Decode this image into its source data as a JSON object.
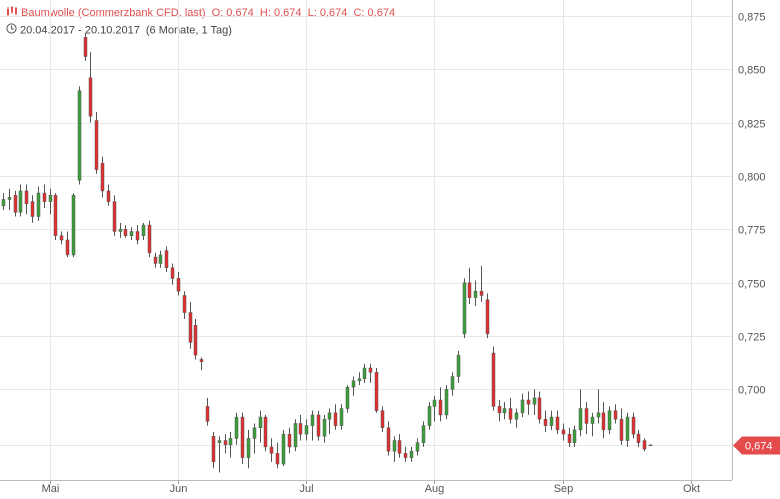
{
  "header": {
    "instrument": "Baumwolle (Commerzbank CFD, last)",
    "ohlc": "O: 0,674  H: 0,674  L: 0,674  C: 0,674",
    "range": "20.04.2017 - 20.10.2017",
    "period": "(6 Monate, 1 Tag)"
  },
  "colors": {
    "up": "#3a9e3a",
    "down": "#e03030",
    "grid": "#e8e8e8",
    "badge": "#e44c4c"
  },
  "chart_data": {
    "type": "candlestick",
    "title": "Baumwolle (Commerzbank CFD, last)",
    "ylim": [
      0.6575,
      0.8825
    ],
    "y_ticks": [
      "0,700",
      "0,725",
      "0,750",
      "0,775",
      "0,800",
      "0,825",
      "0,850",
      "0,875"
    ],
    "y_tick_values": [
      0.7,
      0.725,
      0.75,
      0.775,
      0.8,
      0.825,
      0.85,
      0.875
    ],
    "x_ticks": [
      "Mai",
      "Jun",
      "Jul",
      "Aug",
      "Sep",
      "Okt"
    ],
    "x_tick_index": [
      8,
      30,
      52,
      74,
      96,
      118
    ],
    "last_value": 0.674,
    "last_label": "0,674",
    "candles": [
      [
        0.786,
        0.792,
        0.784,
        0.789
      ],
      [
        0.789,
        0.794,
        0.784,
        0.79
      ],
      [
        0.791,
        0.793,
        0.781,
        0.783
      ],
      [
        0.783,
        0.796,
        0.781,
        0.793
      ],
      [
        0.793,
        0.796,
        0.782,
        0.787
      ],
      [
        0.788,
        0.791,
        0.778,
        0.781
      ],
      [
        0.781,
        0.795,
        0.779,
        0.792
      ],
      [
        0.792,
        0.796,
        0.785,
        0.788
      ],
      [
        0.788,
        0.794,
        0.782,
        0.791
      ],
      [
        0.791,
        0.792,
        0.77,
        0.772
      ],
      [
        0.772,
        0.774,
        0.768,
        0.77
      ],
      [
        0.77,
        0.774,
        0.762,
        0.763
      ],
      [
        0.763,
        0.792,
        0.762,
        0.791
      ],
      [
        0.798,
        0.842,
        0.796,
        0.84
      ],
      [
        0.865,
        0.867,
        0.854,
        0.856
      ],
      [
        0.846,
        0.858,
        0.825,
        0.828
      ],
      [
        0.826,
        0.83,
        0.801,
        0.803
      ],
      [
        0.806,
        0.809,
        0.79,
        0.793
      ],
      [
        0.793,
        0.796,
        0.786,
        0.788
      ],
      [
        0.788,
        0.791,
        0.772,
        0.774
      ],
      [
        0.774,
        0.778,
        0.771,
        0.775
      ],
      [
        0.775,
        0.777,
        0.771,
        0.772
      ],
      [
        0.772,
        0.776,
        0.77,
        0.774
      ],
      [
        0.774,
        0.777,
        0.768,
        0.77
      ],
      [
        0.772,
        0.778,
        0.77,
        0.777
      ],
      [
        0.777,
        0.779,
        0.762,
        0.764
      ],
      [
        0.762,
        0.764,
        0.757,
        0.759
      ],
      [
        0.759,
        0.765,
        0.757,
        0.763
      ],
      [
        0.765,
        0.767,
        0.755,
        0.757
      ],
      [
        0.757,
        0.759,
        0.749,
        0.752
      ],
      [
        0.752,
        0.755,
        0.744,
        0.746
      ],
      [
        0.744,
        0.746,
        0.733,
        0.736
      ],
      [
        0.736,
        0.741,
        0.719,
        0.722
      ],
      [
        0.73,
        0.733,
        0.714,
        0.716
      ],
      [
        0.714,
        0.715,
        0.709,
        0.713
      ],
      [
        0.692,
        0.696,
        0.683,
        0.685
      ],
      [
        0.678,
        0.68,
        0.663,
        0.666
      ],
      [
        0.675,
        0.678,
        0.661,
        0.676
      ],
      [
        0.676,
        0.679,
        0.67,
        0.674
      ],
      [
        0.674,
        0.68,
        0.668,
        0.677
      ],
      [
        0.677,
        0.689,
        0.674,
        0.687
      ],
      [
        0.687,
        0.689,
        0.665,
        0.668
      ],
      [
        0.668,
        0.681,
        0.663,
        0.677
      ],
      [
        0.677,
        0.684,
        0.67,
        0.682
      ],
      [
        0.682,
        0.69,
        0.675,
        0.687
      ],
      [
        0.687,
        0.688,
        0.671,
        0.673
      ],
      [
        0.673,
        0.677,
        0.666,
        0.67
      ],
      [
        0.67,
        0.675,
        0.663,
        0.665
      ],
      [
        0.665,
        0.681,
        0.664,
        0.679
      ],
      [
        0.679,
        0.682,
        0.67,
        0.673
      ],
      [
        0.673,
        0.686,
        0.671,
        0.684
      ],
      [
        0.684,
        0.688,
        0.676,
        0.679
      ],
      [
        0.679,
        0.686,
        0.676,
        0.683
      ],
      [
        0.683,
        0.69,
        0.676,
        0.688
      ],
      [
        0.688,
        0.69,
        0.676,
        0.678
      ],
      [
        0.678,
        0.688,
        0.675,
        0.686
      ],
      [
        0.686,
        0.691,
        0.679,
        0.689
      ],
      [
        0.689,
        0.693,
        0.681,
        0.683
      ],
      [
        0.683,
        0.693,
        0.681,
        0.691
      ],
      [
        0.691,
        0.702,
        0.689,
        0.701
      ],
      [
        0.701,
        0.706,
        0.697,
        0.704
      ],
      [
        0.704,
        0.708,
        0.702,
        0.705
      ],
      [
        0.705,
        0.712,
        0.703,
        0.71
      ],
      [
        0.71,
        0.712,
        0.703,
        0.708
      ],
      [
        0.708,
        0.71,
        0.689,
        0.69
      ],
      [
        0.69,
        0.692,
        0.68,
        0.682
      ],
      [
        0.682,
        0.685,
        0.669,
        0.671
      ],
      [
        0.671,
        0.678,
        0.666,
        0.676
      ],
      [
        0.676,
        0.679,
        0.668,
        0.67
      ],
      [
        0.67,
        0.673,
        0.666,
        0.668
      ],
      [
        0.668,
        0.673,
        0.666,
        0.671
      ],
      [
        0.671,
        0.677,
        0.669,
        0.675
      ],
      [
        0.675,
        0.685,
        0.673,
        0.683
      ],
      [
        0.683,
        0.694,
        0.681,
        0.692
      ],
      [
        0.692,
        0.697,
        0.685,
        0.695
      ],
      [
        0.695,
        0.701,
        0.685,
        0.688
      ],
      [
        0.688,
        0.702,
        0.686,
        0.7
      ],
      [
        0.7,
        0.708,
        0.697,
        0.706
      ],
      [
        0.706,
        0.718,
        0.703,
        0.716
      ],
      [
        0.726,
        0.752,
        0.724,
        0.75
      ],
      [
        0.75,
        0.757,
        0.74,
        0.743
      ],
      [
        0.743,
        0.751,
        0.739,
        0.746
      ],
      [
        0.746,
        0.758,
        0.741,
        0.744
      ],
      [
        0.742,
        0.745,
        0.724,
        0.726
      ],
      [
        0.717,
        0.72,
        0.69,
        0.692
      ],
      [
        0.692,
        0.695,
        0.685,
        0.689
      ],
      [
        0.689,
        0.694,
        0.686,
        0.691
      ],
      [
        0.691,
        0.696,
        0.684,
        0.686
      ],
      [
        0.686,
        0.691,
        0.682,
        0.689
      ],
      [
        0.689,
        0.698,
        0.687,
        0.695
      ],
      [
        0.695,
        0.699,
        0.688,
        0.693
      ],
      [
        0.693,
        0.7,
        0.688,
        0.696
      ],
      [
        0.696,
        0.699,
        0.684,
        0.686
      ],
      [
        0.686,
        0.69,
        0.68,
        0.683
      ],
      [
        0.683,
        0.69,
        0.681,
        0.687
      ],
      [
        0.687,
        0.69,
        0.679,
        0.681
      ],
      [
        0.681,
        0.684,
        0.676,
        0.679
      ],
      [
        0.679,
        0.682,
        0.673,
        0.675
      ],
      [
        0.675,
        0.683,
        0.673,
        0.681
      ],
      [
        0.681,
        0.7,
        0.678,
        0.691
      ],
      [
        0.691,
        0.694,
        0.679,
        0.684
      ],
      [
        0.684,
        0.689,
        0.678,
        0.687
      ],
      [
        0.687,
        0.7,
        0.684,
        0.689
      ],
      [
        0.689,
        0.694,
        0.677,
        0.681
      ],
      [
        0.681,
        0.692,
        0.679,
        0.69
      ],
      [
        0.69,
        0.693,
        0.684,
        0.686
      ],
      [
        0.686,
        0.691,
        0.674,
        0.676
      ],
      [
        0.676,
        0.689,
        0.673,
        0.687
      ],
      [
        0.687,
        0.689,
        0.677,
        0.679
      ],
      [
        0.679,
        0.681,
        0.673,
        0.675
      ],
      [
        0.676,
        0.677,
        0.671,
        0.672
      ],
      [
        0.674,
        0.674,
        0.674,
        0.674
      ]
    ]
  }
}
